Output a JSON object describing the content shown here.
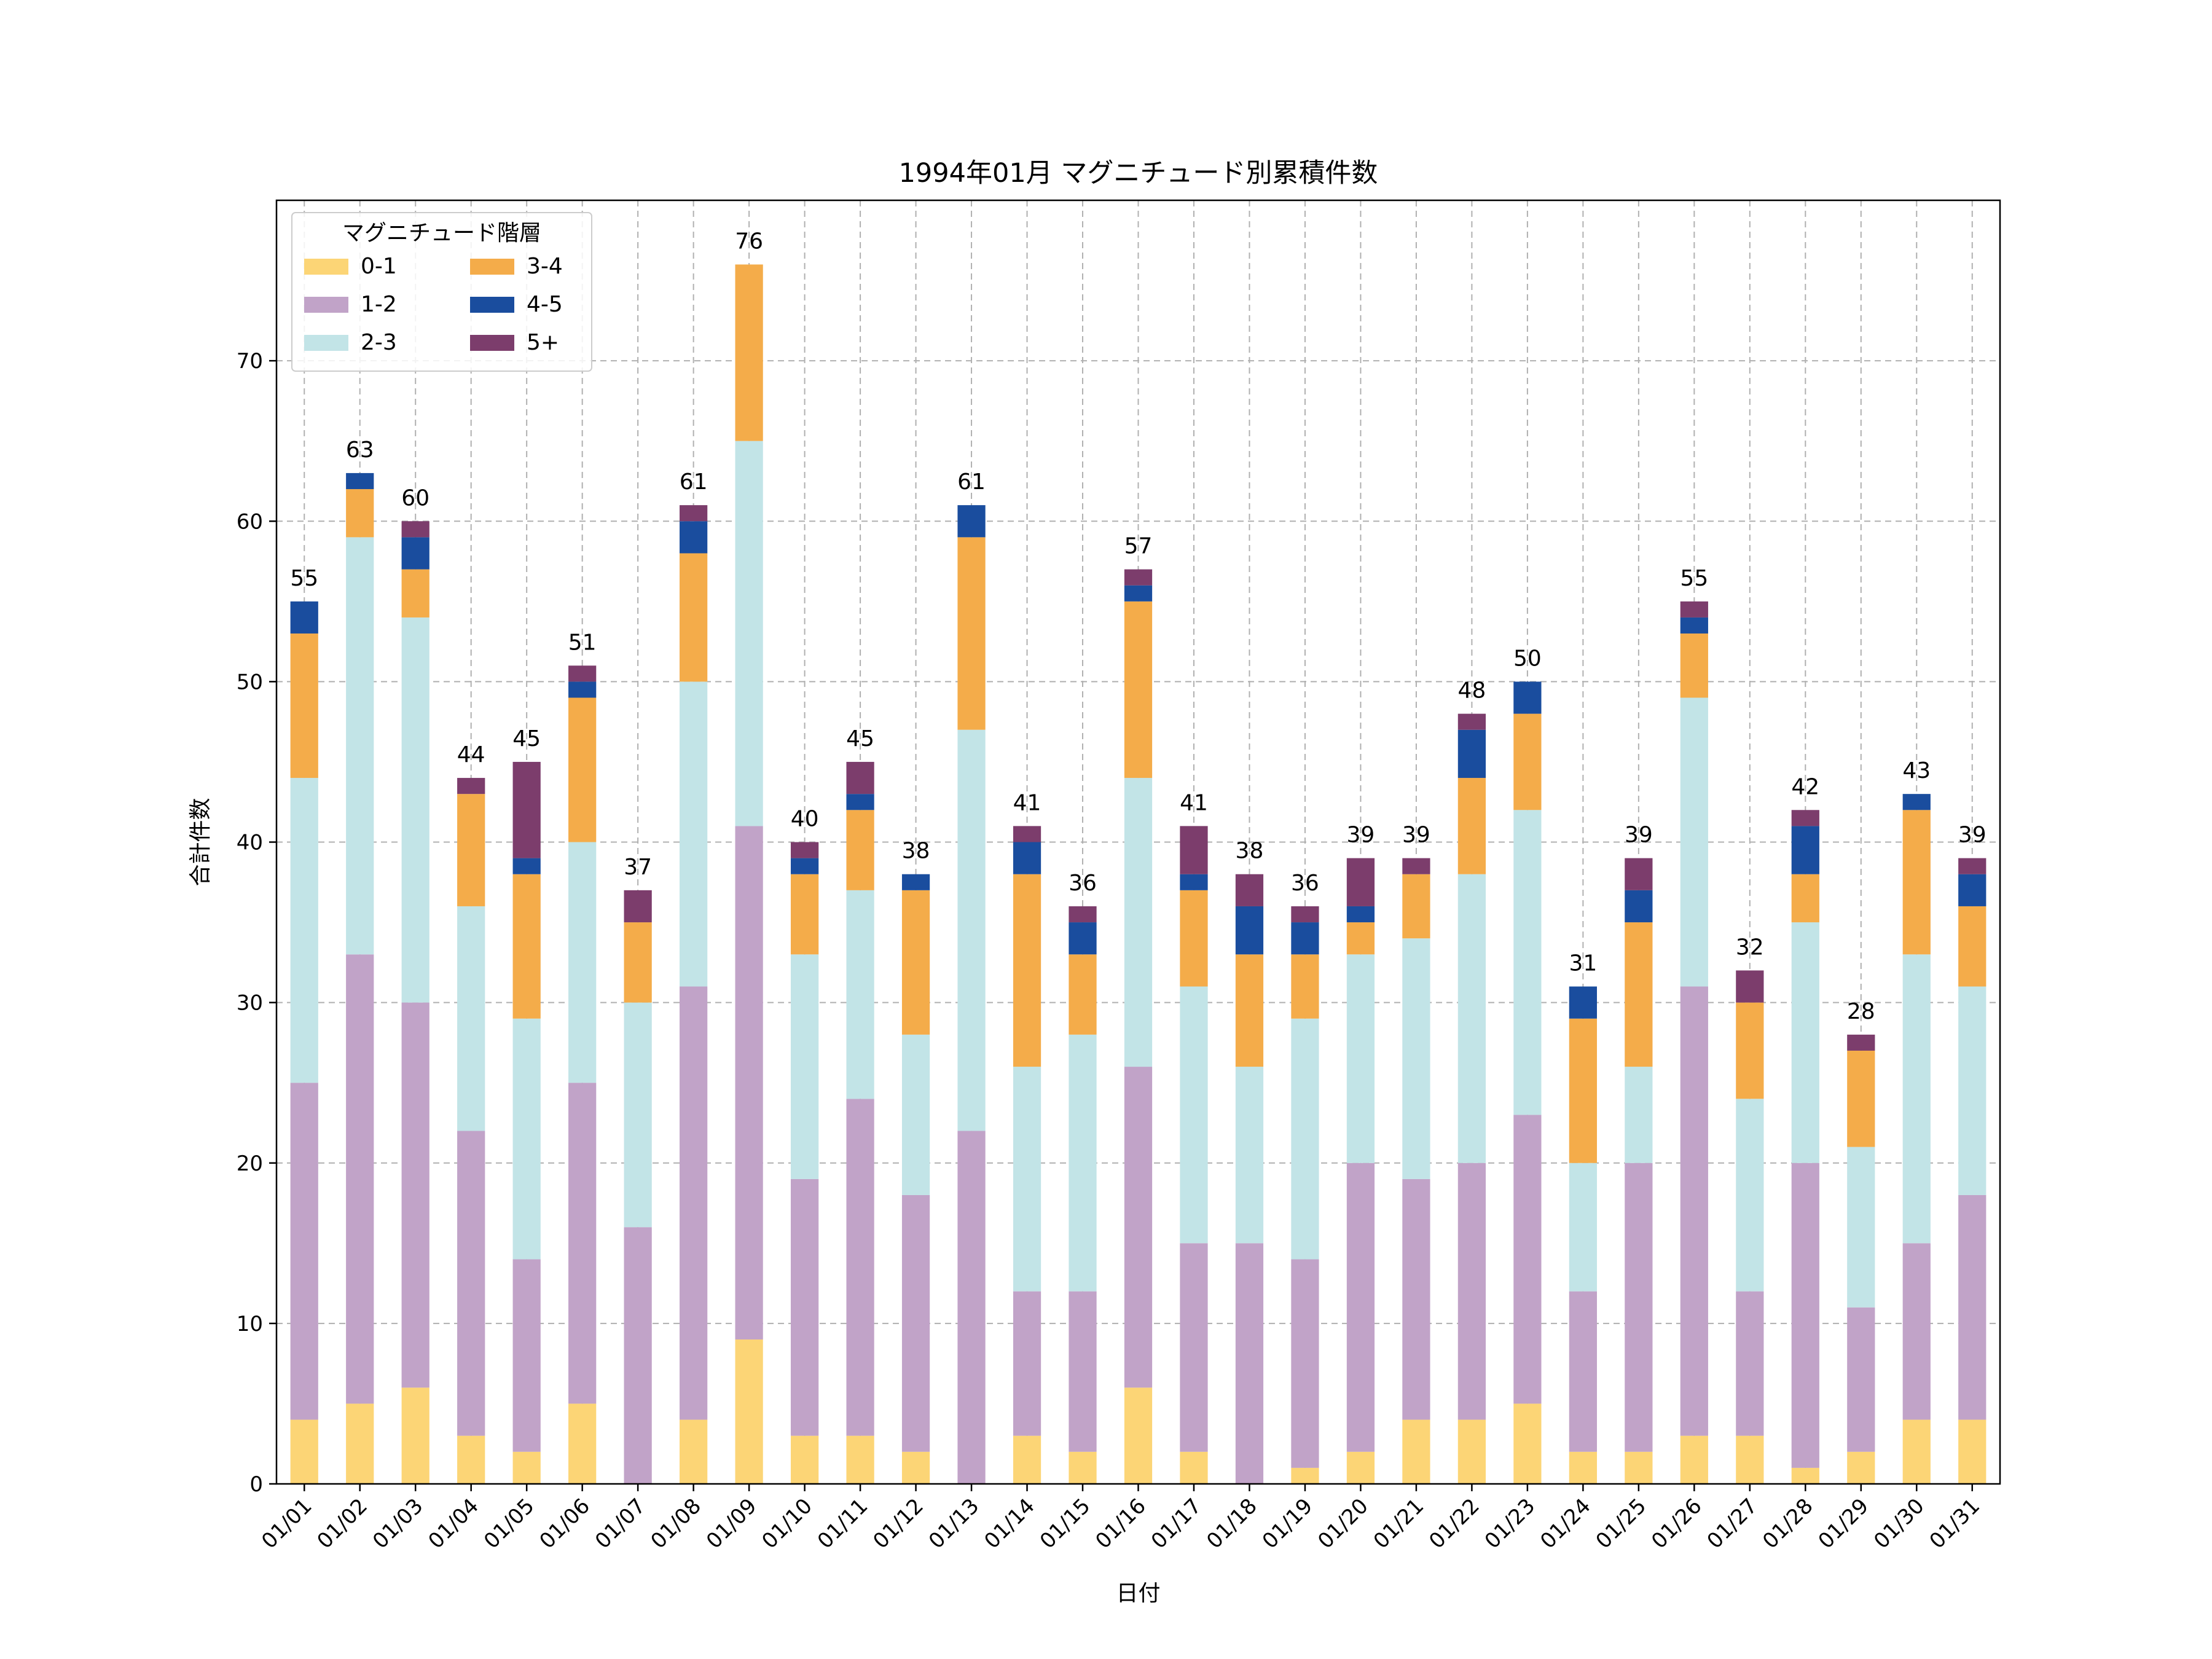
{
  "chart_data": {
    "type": "bar",
    "stacked": true,
    "title": "1994年01月 マグニチュード別累積件数",
    "xlabel": "日付",
    "ylabel": "合計件数",
    "ylim": [
      0,
      80
    ],
    "yticks": [
      0,
      10,
      20,
      30,
      40,
      50,
      60,
      70
    ],
    "grid": true,
    "legend": {
      "title": "マグニチュード階層",
      "placement": "top-left",
      "columns": 2
    },
    "categories": [
      "01/01",
      "01/02",
      "01/03",
      "01/04",
      "01/05",
      "01/06",
      "01/07",
      "01/08",
      "01/09",
      "01/10",
      "01/11",
      "01/12",
      "01/13",
      "01/14",
      "01/15",
      "01/16",
      "01/17",
      "01/18",
      "01/19",
      "01/20",
      "01/21",
      "01/22",
      "01/23",
      "01/24",
      "01/25",
      "01/26",
      "01/27",
      "01/28",
      "01/29",
      "01/30",
      "01/31"
    ],
    "series": [
      {
        "name": "0-1",
        "color": "#fcd576",
        "values": [
          4,
          5,
          6,
          3,
          2,
          5,
          0,
          4,
          9,
          3,
          3,
          2,
          0,
          3,
          2,
          6,
          2,
          0,
          1,
          2,
          4,
          4,
          5,
          2,
          2,
          3,
          3,
          1,
          2,
          4,
          4
        ]
      },
      {
        "name": "1-2",
        "color": "#c1a3c8",
        "values": [
          21,
          28,
          24,
          19,
          12,
          20,
          16,
          27,
          32,
          16,
          21,
          16,
          22,
          9,
          10,
          20,
          13,
          15,
          13,
          18,
          15,
          16,
          18,
          10,
          18,
          28,
          9,
          19,
          9,
          11,
          14
        ]
      },
      {
        "name": "2-3",
        "color": "#c2e4e7",
        "values": [
          19,
          26,
          24,
          14,
          15,
          15,
          14,
          19,
          24,
          14,
          13,
          10,
          25,
          14,
          16,
          18,
          16,
          11,
          15,
          13,
          15,
          18,
          19,
          8,
          6,
          18,
          12,
          15,
          10,
          18,
          13
        ]
      },
      {
        "name": "3-4",
        "color": "#f4ac4a",
        "values": [
          9,
          3,
          3,
          7,
          9,
          9,
          5,
          8,
          11,
          5,
          5,
          9,
          12,
          12,
          5,
          11,
          6,
          7,
          4,
          2,
          4,
          6,
          6,
          9,
          9,
          4,
          6,
          3,
          6,
          9,
          5
        ]
      },
      {
        "name": "4-5",
        "color": "#1a4d9e",
        "values": [
          2,
          1,
          2,
          0,
          1,
          1,
          0,
          2,
          0,
          1,
          1,
          1,
          2,
          2,
          2,
          1,
          1,
          3,
          2,
          1,
          0,
          3,
          2,
          2,
          2,
          1,
          0,
          3,
          0,
          1,
          2
        ]
      },
      {
        "name": "5+",
        "color": "#7c3d6c",
        "values": [
          0,
          0,
          1,
          1,
          6,
          1,
          2,
          1,
          0,
          1,
          2,
          0,
          0,
          1,
          1,
          1,
          3,
          2,
          1,
          3,
          1,
          1,
          0,
          0,
          2,
          1,
          2,
          1,
          1,
          0,
          1
        ]
      }
    ],
    "totals": [
      55,
      63,
      60,
      44,
      45,
      51,
      37,
      61,
      76,
      40,
      45,
      38,
      61,
      41,
      36,
      57,
      41,
      38,
      36,
      39,
      39,
      48,
      50,
      31,
      39,
      55,
      32,
      42,
      28,
      43,
      39
    ]
  }
}
